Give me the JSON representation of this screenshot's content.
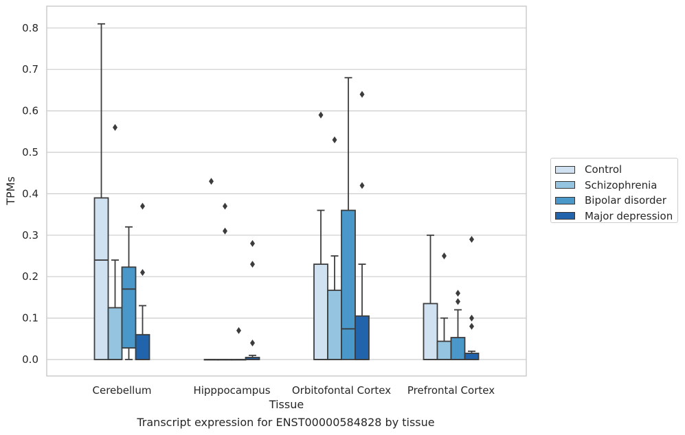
{
  "chart_data": {
    "type": "box",
    "categories": [
      "Cerebellum",
      "Hipppocampus",
      "Orbitofontal Cortex",
      "Prefrontal Cortex"
    ],
    "xlabel": "Tissue",
    "ylabel": "TPMs",
    "ylim": [
      -0.04,
      0.85
    ],
    "yticks": [
      0.0,
      0.1,
      0.2,
      0.3,
      0.4,
      0.5,
      0.6,
      0.7,
      0.8
    ],
    "ytick_labels": [
      "0.0",
      "0.1",
      "0.2",
      "0.3",
      "0.4",
      "0.5",
      "0.6",
      "0.7",
      "0.8"
    ],
    "grid": true,
    "legend_position": "right",
    "series": [
      {
        "name": "Control",
        "color": "#d0e1f2",
        "boxes": [
          {
            "q1": 0.0,
            "median": 0.24,
            "q3": 0.39,
            "whisker_low": 0.0,
            "whisker_high": 0.81,
            "outliers": []
          },
          {
            "q1": 0.0,
            "median": 0.0,
            "q3": 0.0,
            "whisker_low": 0.0,
            "whisker_high": 0.0,
            "outliers": [
              0.43
            ]
          },
          {
            "q1": 0.0,
            "median": 0.0,
            "q3": 0.23,
            "whisker_low": 0.0,
            "whisker_high": 0.36,
            "outliers": [
              0.59
            ]
          },
          {
            "q1": 0.0,
            "median": 0.0,
            "q3": 0.135,
            "whisker_low": 0.0,
            "whisker_high": 0.3,
            "outliers": []
          }
        ]
      },
      {
        "name": "Schizophrenia",
        "color": "#94c4df",
        "boxes": [
          {
            "q1": 0.0,
            "median": 0.0,
            "q3": 0.125,
            "whisker_low": 0.0,
            "whisker_high": 0.24,
            "outliers": [
              0.56
            ]
          },
          {
            "q1": 0.0,
            "median": 0.0,
            "q3": 0.0,
            "whisker_low": 0.0,
            "whisker_high": 0.0,
            "outliers": [
              0.37,
              0.31
            ]
          },
          {
            "q1": 0.0,
            "median": 0.0,
            "q3": 0.167,
            "whisker_low": 0.0,
            "whisker_high": 0.25,
            "outliers": [
              0.53
            ]
          },
          {
            "q1": 0.0,
            "median": 0.0,
            "q3": 0.044,
            "whisker_low": 0.0,
            "whisker_high": 0.1,
            "outliers": [
              0.25
            ]
          }
        ]
      },
      {
        "name": "Bipolar disorder",
        "color": "#4a98c9",
        "boxes": [
          {
            "q1": 0.028,
            "median": 0.17,
            "q3": 0.223,
            "whisker_low": 0.0,
            "whisker_high": 0.32,
            "outliers": []
          },
          {
            "q1": 0.0,
            "median": 0.0,
            "q3": 0.0,
            "whisker_low": 0.0,
            "whisker_high": 0.0,
            "outliers": [
              0.07
            ]
          },
          {
            "q1": 0.0,
            "median": 0.074,
            "q3": 0.36,
            "whisker_low": 0.0,
            "whisker_high": 0.68,
            "outliers": []
          },
          {
            "q1": 0.0,
            "median": 0.0,
            "q3": 0.053,
            "whisker_low": 0.0,
            "whisker_high": 0.12,
            "outliers": [
              0.16,
              0.14
            ]
          }
        ]
      },
      {
        "name": "Major depression",
        "color": "#2164ab",
        "boxes": [
          {
            "q1": 0.0,
            "median": 0.0,
            "q3": 0.06,
            "whisker_low": 0.0,
            "whisker_high": 0.13,
            "outliers": [
              0.37,
              0.21
            ]
          },
          {
            "q1": 0.0,
            "median": 0.0,
            "q3": 0.005,
            "whisker_low": 0.0,
            "whisker_high": 0.01,
            "outliers": [
              0.28,
              0.23,
              0.04
            ]
          },
          {
            "q1": 0.0,
            "median": 0.0,
            "q3": 0.105,
            "whisker_low": 0.0,
            "whisker_high": 0.23,
            "outliers": [
              0.64,
              0.42
            ]
          },
          {
            "q1": 0.0,
            "median": 0.0,
            "q3": 0.015,
            "whisker_low": 0.0,
            "whisker_high": 0.02,
            "outliers": [
              0.29,
              0.1,
              0.08
            ]
          }
        ]
      }
    ]
  },
  "caption": "Transcript expression for ENST00000584828 by tissue"
}
